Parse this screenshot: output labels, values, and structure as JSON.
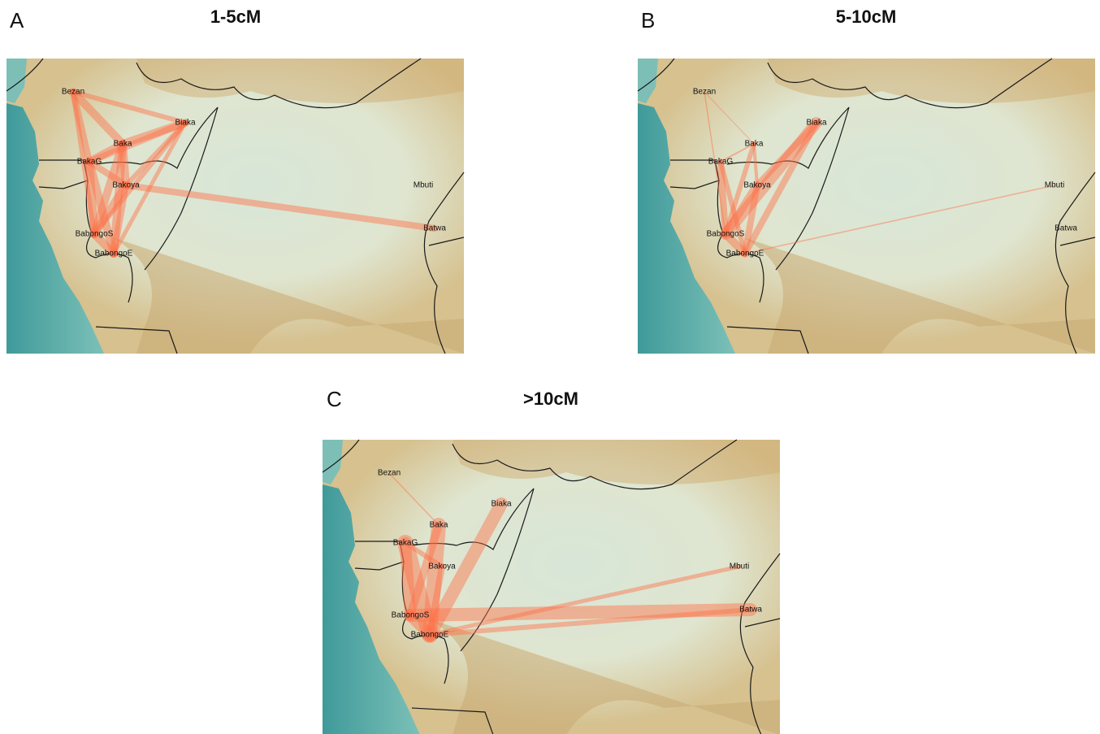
{
  "panels": [
    {
      "letter": "A",
      "title": "1-5cM",
      "labels": [
        "Bezan",
        "Biaka",
        "Baka",
        "BakaG",
        "Bakoya",
        "Mbuti",
        "Batwa",
        "BabongoS",
        "BabongoE"
      ]
    },
    {
      "letter": "B",
      "title": "5-10cM",
      "labels": [
        "Bezan",
        "Biaka",
        "Baka",
        "BakaG",
        "Bakoya",
        "Mbuti",
        "Batwa",
        "BabongoS",
        "BabongoE"
      ]
    },
    {
      "letter": "C",
      "title": ">10cM",
      "labels": [
        "Bezan",
        "Biaka",
        "Baka",
        "BakaG",
        "Bakoya",
        "Mbuti",
        "Batwa",
        "BabongoS",
        "BabongoE"
      ]
    }
  ]
}
